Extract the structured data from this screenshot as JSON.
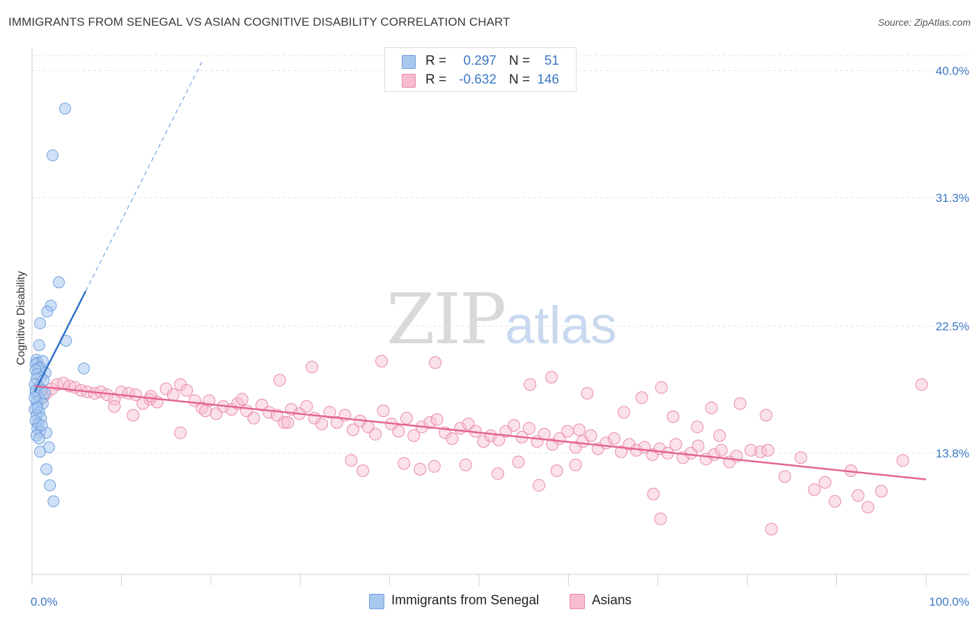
{
  "header": {
    "title": "IMMIGRANTS FROM SENEGAL VS ASIAN COGNITIVE DISABILITY CORRELATION CHART",
    "source": "Source: ZipAtlas.com"
  },
  "watermark": {
    "zip": "ZIP",
    "atlas": "atlas"
  },
  "legend": {
    "series1": {
      "r_label": "R =",
      "r_value": "0.297",
      "n_label": "N =",
      "n_value": "51"
    },
    "series2": {
      "r_label": "R =",
      "r_value": "-0.632",
      "n_label": "N =",
      "n_value": "146"
    }
  },
  "bottom_legend": {
    "series1": "Immigrants from Senegal",
    "series2": "Asians"
  },
  "colors": {
    "blue_fill": "#a9c8f0",
    "blue_stroke": "#6fa0de",
    "blue_line": "#2f72c9",
    "pink_fill": "#f7bccd",
    "pink_stroke": "#e98aa8",
    "pink_line": "#e4648f",
    "grid": "#e3e3e3",
    "tick_text": "#3b78c4"
  },
  "chart_data": {
    "type": "scatter",
    "title": "IMMIGRANTS FROM SENEGAL VS ASIAN COGNITIVE DISABILITY CORRELATION CHART",
    "xlabel": "",
    "ylabel": "Cognitive Disability",
    "xlim": [
      0,
      100
    ],
    "ylim": [
      5.5,
      41.5
    ],
    "y_ticks": [
      13.8,
      22.5,
      31.3,
      40.0
    ],
    "y_tick_labels": [
      "13.8%",
      "22.5%",
      "31.3%",
      "40.0%"
    ],
    "x_tick_labels": [
      "0.0%",
      "100.0%"
    ],
    "grid": true,
    "legend_position": "top-center",
    "series": [
      {
        "name": "Immigrants from Senegal",
        "color": "#a9c8f0",
        "r": 0.297,
        "n": 51,
        "trend": {
          "x": [
            0.3,
            6.0
          ],
          "y": [
            18.0,
            24.9
          ],
          "dashed_to": {
            "x": 19.0,
            "y": 40.6
          }
        },
        "points": [
          [
            3.7,
            37.4
          ],
          [
            2.3,
            34.2
          ],
          [
            3.0,
            25.5
          ],
          [
            2.1,
            23.9
          ],
          [
            1.7,
            23.5
          ],
          [
            0.9,
            22.7
          ],
          [
            3.8,
            21.5
          ],
          [
            0.8,
            21.2
          ],
          [
            0.5,
            20.2
          ],
          [
            0.6,
            20.0
          ],
          [
            1.2,
            20.1
          ],
          [
            0.4,
            19.9
          ],
          [
            0.9,
            19.7
          ],
          [
            0.7,
            19.6
          ],
          [
            0.4,
            19.5
          ],
          [
            1.5,
            19.3
          ],
          [
            0.6,
            19.2
          ],
          [
            1.0,
            19.0
          ],
          [
            0.5,
            18.9
          ],
          [
            1.3,
            18.8
          ],
          [
            5.8,
            19.6
          ],
          [
            0.3,
            18.5
          ],
          [
            0.8,
            18.3
          ],
          [
            1.1,
            18.1
          ],
          [
            0.4,
            17.9
          ],
          [
            0.7,
            17.7
          ],
          [
            0.9,
            17.5
          ],
          [
            0.5,
            17.3
          ],
          [
            1.2,
            17.2
          ],
          [
            0.6,
            17.0
          ],
          [
            0.3,
            16.8
          ],
          [
            0.8,
            16.6
          ],
          [
            0.5,
            16.4
          ],
          [
            1.0,
            16.2
          ],
          [
            0.4,
            16.0
          ],
          [
            0.7,
            15.8
          ],
          [
            0.6,
            15.5
          ],
          [
            0.9,
            15.3
          ],
          [
            1.6,
            15.2
          ],
          [
            0.5,
            15.0
          ],
          [
            0.8,
            14.8
          ],
          [
            1.9,
            14.2
          ],
          [
            0.9,
            13.9
          ],
          [
            1.6,
            12.7
          ],
          [
            2.0,
            11.6
          ],
          [
            2.4,
            10.5
          ],
          [
            0.4,
            18.1
          ],
          [
            1.4,
            17.9
          ],
          [
            0.6,
            16.9
          ],
          [
            1.1,
            15.7
          ],
          [
            0.3,
            17.6
          ]
        ]
      },
      {
        "name": "Asians",
        "color": "#f7bccd",
        "r": -0.632,
        "n": 146,
        "trend": {
          "x": [
            0.3,
            100.0
          ],
          "y": [
            18.4,
            12.0
          ]
        },
        "points": [
          [
            0.8,
            18.0
          ],
          [
            1.2,
            17.6
          ],
          [
            1.6,
            17.9
          ],
          [
            2.2,
            18.2
          ],
          [
            2.8,
            18.5
          ],
          [
            3.5,
            18.6
          ],
          [
            4.2,
            18.4
          ],
          [
            4.8,
            18.3
          ],
          [
            5.5,
            18.1
          ],
          [
            6.2,
            18.0
          ],
          [
            7.0,
            17.9
          ],
          [
            7.7,
            18.0
          ],
          [
            8.4,
            17.8
          ],
          [
            9.2,
            17.5
          ],
          [
            10.0,
            18.0
          ],
          [
            10.8,
            17.9
          ],
          [
            11.6,
            17.8
          ],
          [
            12.4,
            17.2
          ],
          [
            13.2,
            17.5
          ],
          [
            14.0,
            17.3
          ],
          [
            15.0,
            18.2
          ],
          [
            15.8,
            17.8
          ],
          [
            16.6,
            18.5
          ],
          [
            17.3,
            18.1
          ],
          [
            18.2,
            17.4
          ],
          [
            19.0,
            16.9
          ],
          [
            19.8,
            17.4
          ],
          [
            20.6,
            16.5
          ],
          [
            21.4,
            17.0
          ],
          [
            22.3,
            16.8
          ],
          [
            23.0,
            17.2
          ],
          [
            24.0,
            16.7
          ],
          [
            24.8,
            16.2
          ],
          [
            25.7,
            17.1
          ],
          [
            26.5,
            16.6
          ],
          [
            27.4,
            16.4
          ],
          [
            28.2,
            15.9
          ],
          [
            29.0,
            16.8
          ],
          [
            29.9,
            16.5
          ],
          [
            30.7,
            17.0
          ],
          [
            31.6,
            16.2
          ],
          [
            32.4,
            15.8
          ],
          [
            33.3,
            16.6
          ],
          [
            34.1,
            15.9
          ],
          [
            35.0,
            16.4
          ],
          [
            35.9,
            15.4
          ],
          [
            36.7,
            16.0
          ],
          [
            37.6,
            15.6
          ],
          [
            38.4,
            15.1
          ],
          [
            39.3,
            16.7
          ],
          [
            40.2,
            15.8
          ],
          [
            41.0,
            15.3
          ],
          [
            41.9,
            16.2
          ],
          [
            42.7,
            15.0
          ],
          [
            43.6,
            15.6
          ],
          [
            44.5,
            15.9
          ],
          [
            45.3,
            16.1
          ],
          [
            46.2,
            15.2
          ],
          [
            47.0,
            14.8
          ],
          [
            47.9,
            15.5
          ],
          [
            48.8,
            15.8
          ],
          [
            49.6,
            15.3
          ],
          [
            50.5,
            14.6
          ],
          [
            51.3,
            15.0
          ],
          [
            52.2,
            14.7
          ],
          [
            53.0,
            15.3
          ],
          [
            53.9,
            15.7
          ],
          [
            54.8,
            14.9
          ],
          [
            55.6,
            15.5
          ],
          [
            56.5,
            14.6
          ],
          [
            57.3,
            15.1
          ],
          [
            58.2,
            14.4
          ],
          [
            59.0,
            14.8
          ],
          [
            59.9,
            15.3
          ],
          [
            60.8,
            14.2
          ],
          [
            61.6,
            14.6
          ],
          [
            62.5,
            15.0
          ],
          [
            63.3,
            14.1
          ],
          [
            64.2,
            14.5
          ],
          [
            65.1,
            14.8
          ],
          [
            65.9,
            13.9
          ],
          [
            66.8,
            14.4
          ],
          [
            67.6,
            14.0
          ],
          [
            68.5,
            14.2
          ],
          [
            69.4,
            13.7
          ],
          [
            70.2,
            14.1
          ],
          [
            71.1,
            13.8
          ],
          [
            72.0,
            14.4
          ],
          [
            72.8,
            13.5
          ],
          [
            73.7,
            13.8
          ],
          [
            74.5,
            14.3
          ],
          [
            75.4,
            13.4
          ],
          [
            76.3,
            13.7
          ],
          [
            77.1,
            14.0
          ],
          [
            78.0,
            13.2
          ],
          [
            78.8,
            13.6
          ],
          [
            80.4,
            14.0
          ],
          [
            81.5,
            13.9
          ],
          [
            82.3,
            14.0
          ],
          [
            84.2,
            12.2
          ],
          [
            86.0,
            13.5
          ],
          [
            87.5,
            11.3
          ],
          [
            88.7,
            11.8
          ],
          [
            89.8,
            10.5
          ],
          [
            91.6,
            12.6
          ],
          [
            92.4,
            10.9
          ],
          [
            93.5,
            10.1
          ],
          [
            95.0,
            11.2
          ],
          [
            97.4,
            13.3
          ],
          [
            99.5,
            18.5
          ],
          [
            45.1,
            20.0
          ],
          [
            39.1,
            20.1
          ],
          [
            31.3,
            19.7
          ],
          [
            27.7,
            18.8
          ],
          [
            55.7,
            18.5
          ],
          [
            58.1,
            19.0
          ],
          [
            62.1,
            17.9
          ],
          [
            68.2,
            17.6
          ],
          [
            70.4,
            18.3
          ],
          [
            76.0,
            16.9
          ],
          [
            79.2,
            17.2
          ],
          [
            82.1,
            16.4
          ],
          [
            61.2,
            15.4
          ],
          [
            66.2,
            16.6
          ],
          [
            71.7,
            16.3
          ],
          [
            74.4,
            15.6
          ],
          [
            76.9,
            15.0
          ],
          [
            54.4,
            13.2
          ],
          [
            58.7,
            12.6
          ],
          [
            60.8,
            13.0
          ],
          [
            52.1,
            12.4
          ],
          [
            48.5,
            13.0
          ],
          [
            45.0,
            12.9
          ],
          [
            43.4,
            12.7
          ],
          [
            41.6,
            13.1
          ],
          [
            37.0,
            12.6
          ],
          [
            35.7,
            13.3
          ],
          [
            28.6,
            15.9
          ],
          [
            23.5,
            17.5
          ],
          [
            19.4,
            16.7
          ],
          [
            16.6,
            15.2
          ],
          [
            13.3,
            17.7
          ],
          [
            11.3,
            16.4
          ],
          [
            9.2,
            17.0
          ],
          [
            70.3,
            9.3
          ],
          [
            69.5,
            11.0
          ],
          [
            82.7,
            8.6
          ],
          [
            56.7,
            11.6
          ]
        ]
      }
    ]
  }
}
